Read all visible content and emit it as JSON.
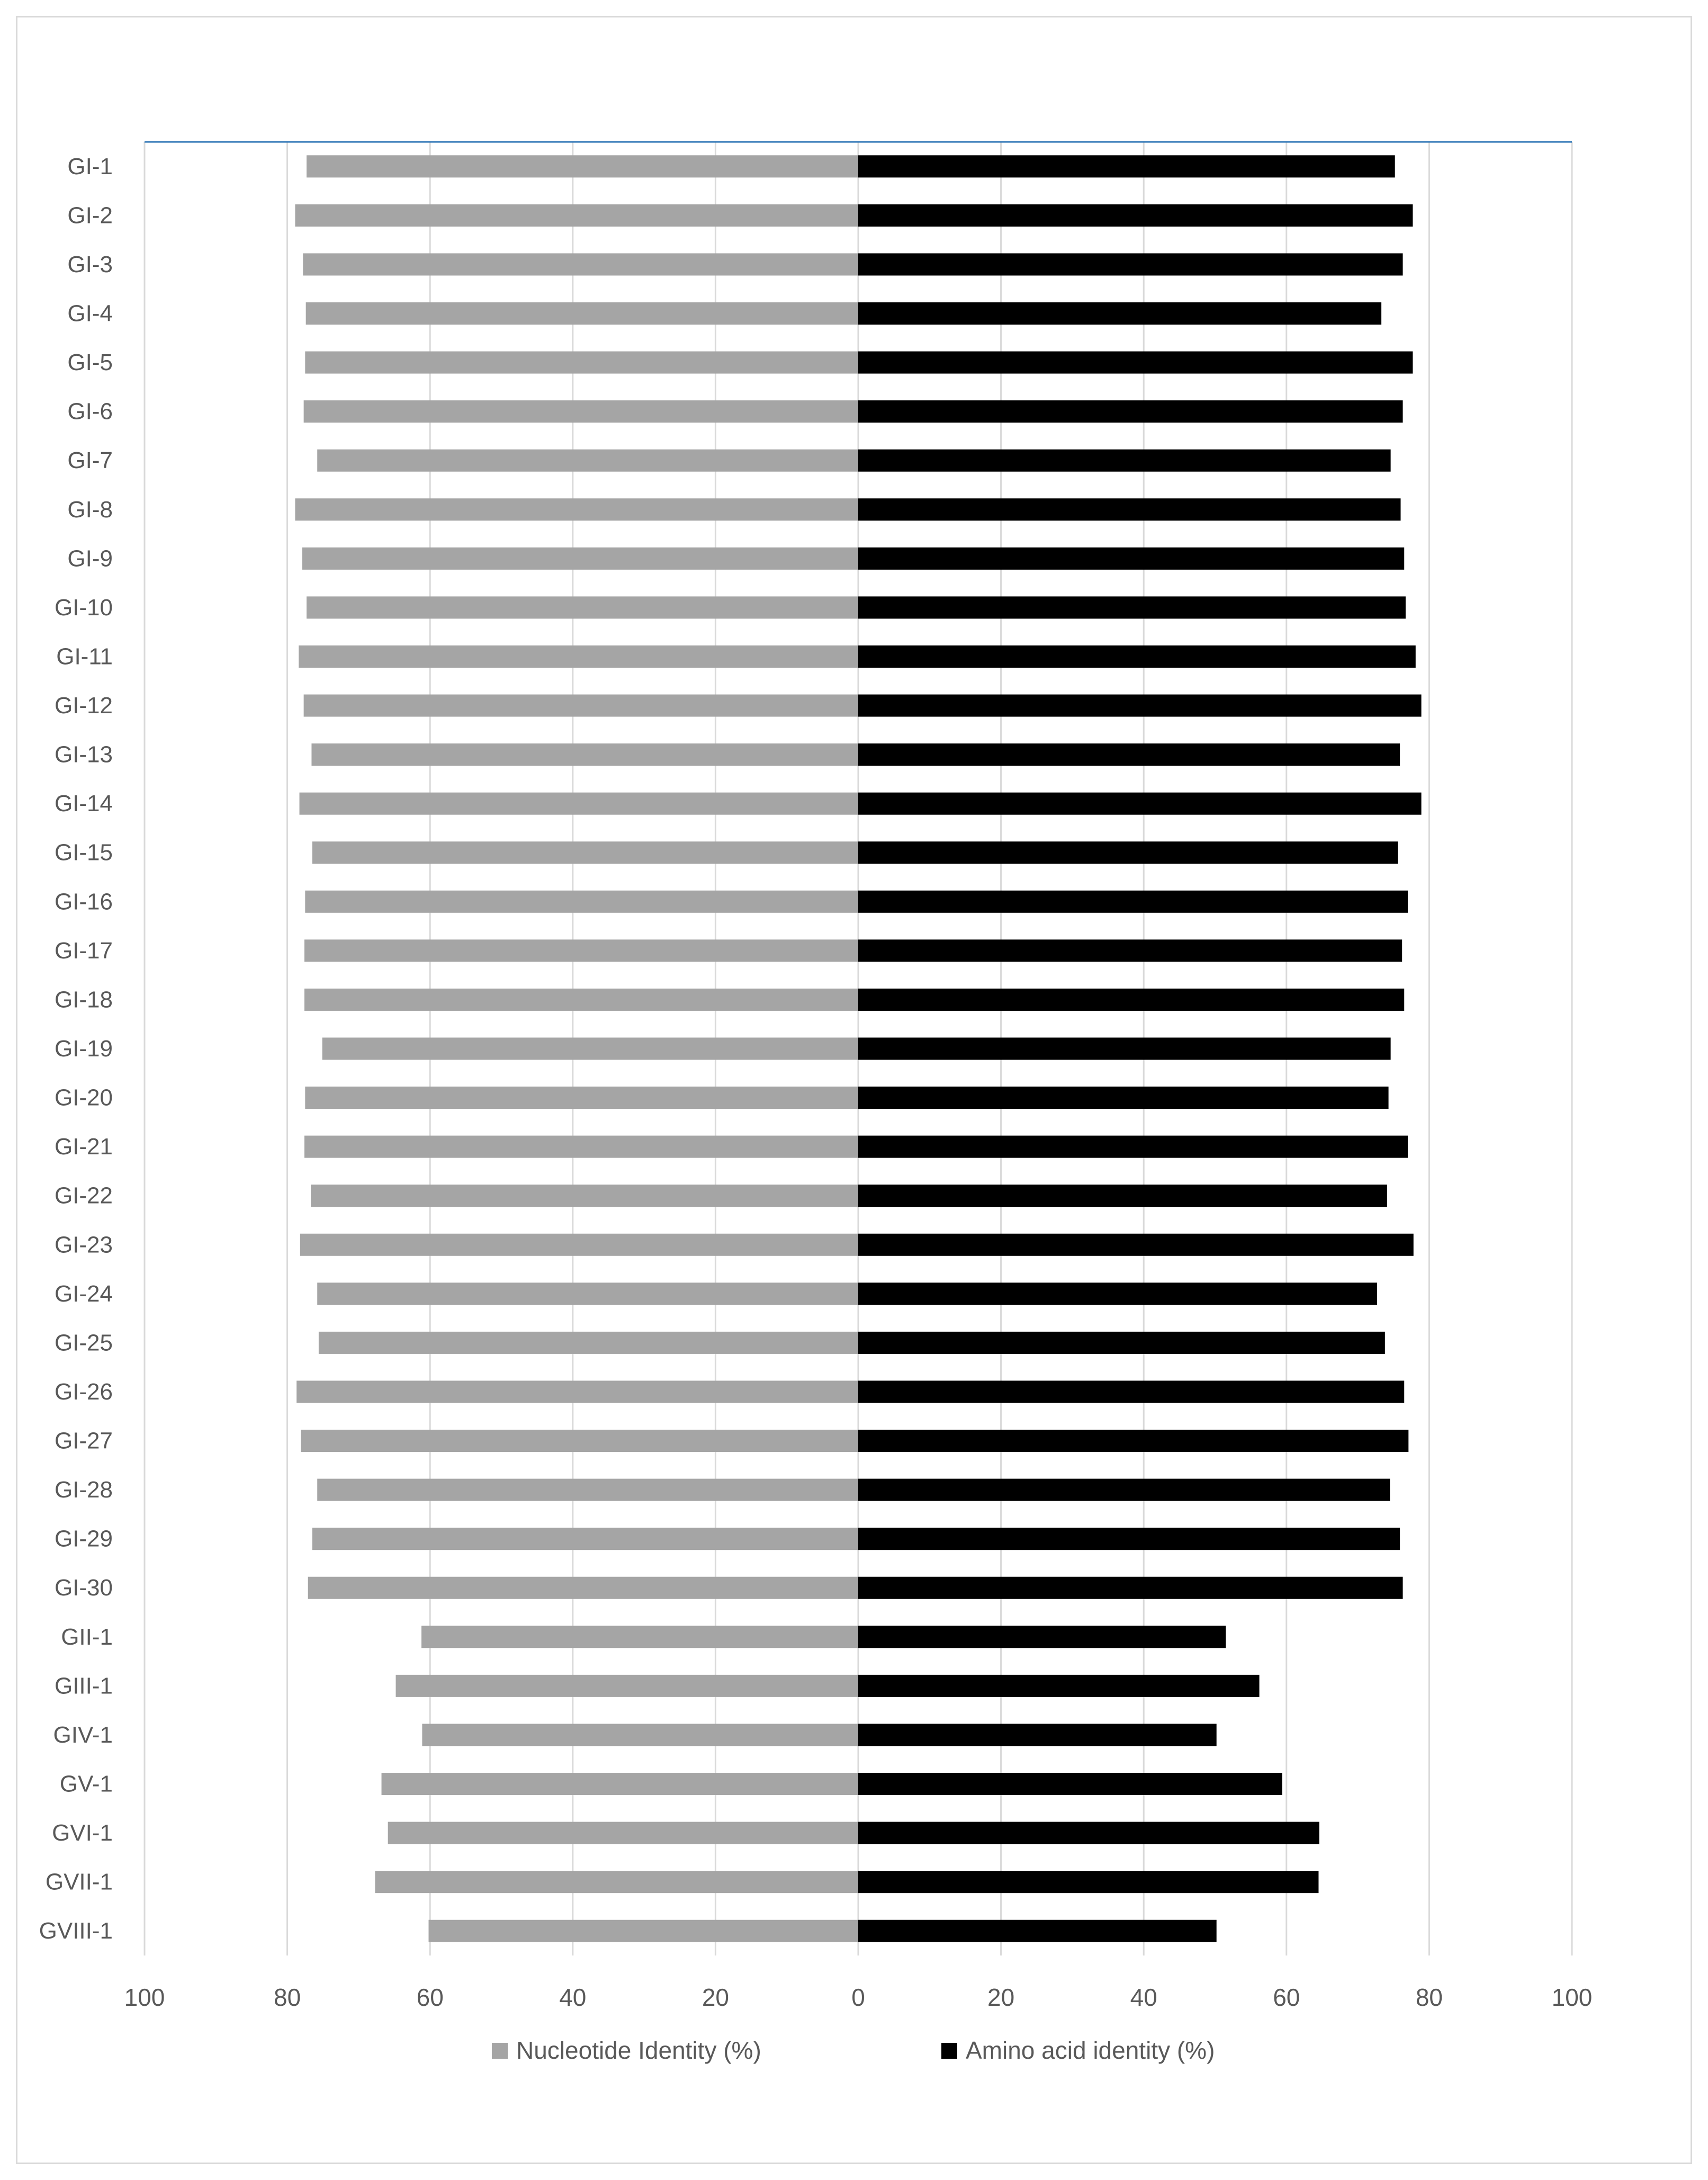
{
  "chart_data": {
    "type": "bar",
    "orientation": "horizontal-diverging",
    "categories": [
      "GI-1",
      "GI-2",
      "GI-3",
      "GI-4",
      "GI-5",
      "GI-6",
      "GI-7",
      "GI-8",
      "GI-9",
      "GI-10",
      "GI-11",
      "GI-12",
      "GI-13",
      "GI-14",
      "GI-15",
      "GI-16",
      "GI-17",
      "GI-18",
      "GI-19",
      "GI-20",
      "GI-21",
      "GI-22",
      "GI-23",
      "GI-24",
      "GI-25",
      "GI-26",
      "GI-27",
      "GI-28",
      "GI-29",
      "GI-30",
      "GII-1",
      "GIII-1",
      "GIV-1",
      "GV-1",
      "GVI-1",
      "GVII-1",
      "GVIII-1"
    ],
    "series": [
      {
        "name": "Nucleotide Identity (%)",
        "side": "left",
        "color": "#a5a5a5",
        "values": [
          77.3,
          78.9,
          77.8,
          77.4,
          77.5,
          77.7,
          75.8,
          78.9,
          77.9,
          77.3,
          78.4,
          77.7,
          76.6,
          78.3,
          76.5,
          77.5,
          77.6,
          77.6,
          75.1,
          77.5,
          77.6,
          76.7,
          78.2,
          75.8,
          75.6,
          78.7,
          78.1,
          75.8,
          76.5,
          77.1,
          61.2,
          64.8,
          61.1,
          66.8,
          65.9,
          67.7,
          60.2
        ]
      },
      {
        "name": "Amino acid identity (%)",
        "side": "right",
        "color": "#000000",
        "values": [
          75.2,
          77.7,
          76.3,
          73.3,
          77.7,
          76.3,
          74.6,
          76.0,
          76.5,
          76.7,
          78.1,
          78.9,
          75.9,
          78.9,
          75.6,
          77.0,
          76.2,
          76.5,
          74.6,
          74.3,
          77.0,
          74.1,
          77.8,
          72.7,
          73.8,
          76.5,
          77.1,
          74.5,
          75.9,
          76.3,
          51.5,
          56.2,
          50.2,
          59.4,
          64.6,
          64.5,
          50.2
        ]
      }
    ],
    "axis": {
      "tick_values": [
        -100,
        -80,
        -60,
        -40,
        -20,
        0,
        20,
        40,
        60,
        80,
        100
      ],
      "tick_labels": [
        "100",
        "80",
        "60",
        "40",
        "20",
        "0",
        "20",
        "40",
        "60",
        "80",
        "100"
      ],
      "range": [
        -100,
        100
      ]
    },
    "grid": "vertical",
    "legend_position": "bottom",
    "title": "",
    "xlabel": "",
    "ylabel": ""
  },
  "colors": {
    "nucleotide": "#a5a5a5",
    "amino_acid": "#000000",
    "gridline": "#d9d9d9",
    "top_line": "#2e75b6",
    "axis_text": "#595959"
  }
}
